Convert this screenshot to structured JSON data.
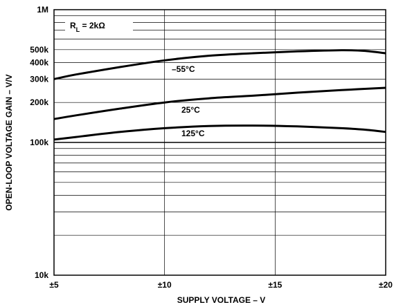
{
  "chart_data": {
    "type": "line",
    "xlabel": "SUPPLY VOLTAGE – V",
    "ylabel": "OPEN-LOOP VOLTAGE GAIN – V/V",
    "condition": {
      "prefix": "R",
      "sub": "L",
      "suffix": " = 2kΩ"
    },
    "x_ticks": [
      {
        "value": 5,
        "label": "±5"
      },
      {
        "value": 10,
        "label": "±10"
      },
      {
        "value": 15,
        "label": "±15"
      },
      {
        "value": 20,
        "label": "±20"
      }
    ],
    "y_ticks": [
      {
        "value": 10000,
        "label": "10k"
      },
      {
        "value": 100000,
        "label": "100k"
      },
      {
        "value": 200000,
        "label": "200k"
      },
      {
        "value": 300000,
        "label": "300k"
      },
      {
        "value": 400000,
        "label": "400k"
      },
      {
        "value": 500000,
        "label": "500k"
      },
      {
        "value": 1000000,
        "label": "1M"
      }
    ],
    "xlim": [
      5,
      20
    ],
    "ylim": [
      10000,
      1000000
    ],
    "y_scale": "log",
    "grid": true,
    "series": [
      {
        "name": "–55°C",
        "x": [
          5,
          6,
          8,
          10,
          12,
          14,
          16,
          18,
          19,
          20
        ],
        "y": [
          300000,
          325000,
          370000,
          415000,
          450000,
          470000,
          485000,
          495000,
          490000,
          470000
        ]
      },
      {
        "name": "25°C",
        "x": [
          5,
          6,
          8,
          10,
          12,
          14,
          16,
          18,
          20
        ],
        "y": [
          150000,
          160000,
          180000,
          200000,
          215000,
          225000,
          237000,
          248000,
          258000
        ]
      },
      {
        "name": "125°C",
        "x": [
          5,
          6,
          8,
          10,
          12,
          14,
          16,
          18,
          19,
          20
        ],
        "y": [
          105000,
          110000,
          120000,
          128000,
          133000,
          134000,
          132000,
          128000,
          125000,
          120000
        ]
      }
    ]
  }
}
